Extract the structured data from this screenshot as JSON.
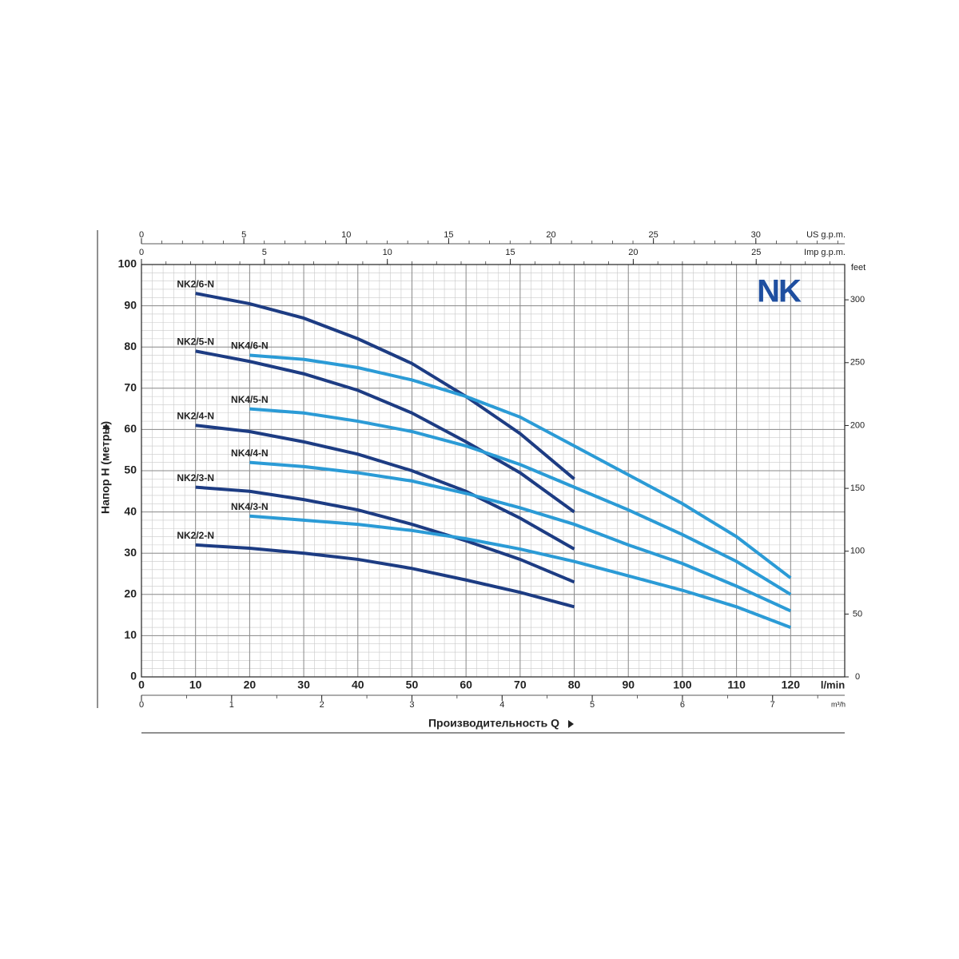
{
  "chart_data": {
    "type": "line",
    "logo": "NK",
    "xlabel": "Производительность Q",
    "ylabel": "Напор H (метры)",
    "x_unit": "l/min",
    "xlim": [
      0,
      130
    ],
    "xticks": [
      0,
      10,
      20,
      30,
      40,
      50,
      60,
      70,
      80,
      90,
      100,
      110,
      120
    ],
    "ylim": [
      0,
      100
    ],
    "yticks": [
      0,
      10,
      20,
      30,
      40,
      50,
      60,
      70,
      80,
      90,
      100
    ],
    "y2_unit": "feet",
    "y2lim": [
      0,
      328.08
    ],
    "y2ticks": [
      0,
      50,
      100,
      150,
      200,
      250,
      300
    ],
    "secondary_x_axes": [
      {
        "unit": "US g.p.m.",
        "lim": [
          0,
          34.34
        ],
        "ticks": [
          0,
          5,
          10,
          15,
          20,
          25,
          30
        ]
      },
      {
        "unit": "Imp g.p.m.",
        "lim": [
          0,
          28.6
        ],
        "ticks": [
          0,
          5,
          10,
          15,
          20,
          25
        ]
      },
      {
        "unit": "m³/h",
        "lim": [
          0,
          7.8
        ],
        "ticks": [
          0,
          1,
          2,
          3,
          4,
          5,
          6,
          7
        ]
      }
    ],
    "grid": true,
    "series": [
      {
        "name": "NK2/6-N",
        "color": "#1d3c83",
        "x": [
          10,
          20,
          30,
          40,
          50,
          60,
          70,
          80
        ],
        "values": [
          93,
          90.5,
          87,
          82,
          76,
          68,
          59,
          48
        ]
      },
      {
        "name": "NK2/5-N",
        "color": "#1d3c83",
        "x": [
          10,
          20,
          30,
          40,
          50,
          60,
          70,
          80
        ],
        "values": [
          79,
          76.5,
          73.5,
          69.5,
          64,
          57,
          49.5,
          40
        ]
      },
      {
        "name": "NK2/4-N",
        "color": "#1d3c83",
        "x": [
          10,
          20,
          30,
          40,
          50,
          60,
          70,
          80
        ],
        "values": [
          61,
          59.5,
          57,
          54,
          50,
          45,
          38.5,
          31
        ]
      },
      {
        "name": "NK2/3-N",
        "color": "#1d3c83",
        "x": [
          10,
          20,
          30,
          40,
          50,
          60,
          70,
          80
        ],
        "values": [
          46,
          45,
          43,
          40.5,
          37,
          33,
          28.5,
          23
        ]
      },
      {
        "name": "NK2/2-N",
        "color": "#1d3c83",
        "x": [
          10,
          20,
          30,
          40,
          50,
          60,
          70,
          80
        ],
        "values": [
          32,
          31.2,
          30,
          28.5,
          26.3,
          23.5,
          20.5,
          17
        ]
      },
      {
        "name": "NK4/6-N",
        "color": "#2b9bd6",
        "x": [
          20,
          30,
          40,
          50,
          60,
          70,
          80,
          90,
          100,
          110,
          120
        ],
        "values": [
          78,
          77,
          75,
          72,
          68,
          63,
          56,
          49,
          42,
          34,
          24
        ]
      },
      {
        "name": "NK4/5-N",
        "color": "#2b9bd6",
        "x": [
          20,
          30,
          40,
          50,
          60,
          70,
          80,
          90,
          100,
          110,
          120
        ],
        "values": [
          65,
          64,
          62,
          59.5,
          56,
          51.5,
          46,
          40.5,
          34.5,
          28,
          20
        ]
      },
      {
        "name": "NK4/4-N",
        "color": "#2b9bd6",
        "x": [
          20,
          30,
          40,
          50,
          60,
          70,
          80,
          90,
          100,
          110,
          120
        ],
        "values": [
          52,
          51,
          49.5,
          47.5,
          44.5,
          41,
          37,
          32,
          27.5,
          22,
          16
        ]
      },
      {
        "name": "NK4/3-N",
        "color": "#2b9bd6",
        "x": [
          20,
          30,
          40,
          50,
          60,
          70,
          80,
          90,
          100,
          110,
          120
        ],
        "values": [
          39,
          38,
          37,
          35.5,
          33.5,
          31,
          28,
          24.5,
          21,
          17,
          12
        ]
      }
    ]
  }
}
